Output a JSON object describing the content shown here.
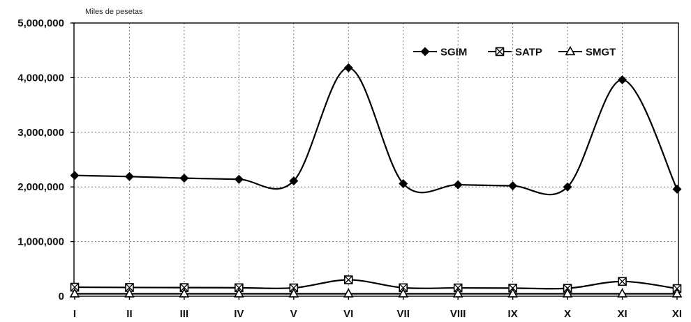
{
  "chart_data": {
    "type": "line",
    "ylabel": "Miles de pesetas",
    "xlabel": "",
    "title": "",
    "categories": [
      "I",
      "II",
      "III",
      "IV",
      "V",
      "VI",
      "VII",
      "VIII",
      "IX",
      "X",
      "XI",
      "XI"
    ],
    "yticks": [
      "5,000,000",
      "4,000,000",
      "3,000,000",
      "2,000,000",
      "1,000,000",
      "0"
    ],
    "ylim": [
      0,
      5000000
    ],
    "grid": true,
    "legend_position": "top-right",
    "smooth": true,
    "series": [
      {
        "name": "SGIM",
        "marker": "diamond",
        "values": [
          2210000,
          2190000,
          2160000,
          2140000,
          2110000,
          4180000,
          2060000,
          2040000,
          2020000,
          2000000,
          3960000,
          1960000
        ]
      },
      {
        "name": "SATP",
        "marker": "square-x",
        "values": [
          165000,
          160000,
          158000,
          155000,
          152000,
          300000,
          155000,
          152000,
          148000,
          145000,
          270000,
          140000
        ]
      },
      {
        "name": "SMGT",
        "marker": "triangle",
        "values": [
          45000,
          45000,
          45000,
          45000,
          45000,
          45000,
          45000,
          45000,
          45000,
          45000,
          45000,
          45000
        ]
      }
    ]
  }
}
